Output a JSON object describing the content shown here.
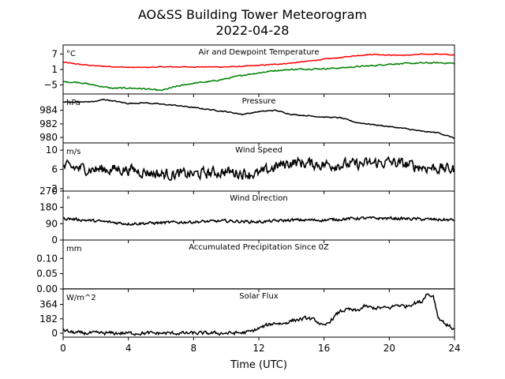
{
  "chart_data": {
    "title": "AO&SS Building Tower Meteorogram",
    "subtitle": "2022-04-28",
    "type": "line",
    "xlabel": "Time (UTC)",
    "xlim": [
      0,
      24
    ],
    "xticks": [
      0,
      4,
      8,
      12,
      16,
      20,
      24
    ],
    "panels": [
      {
        "name": "Air and Dewpoint Temperature",
        "unit": "°C",
        "ylim": [
          -8.5,
          10.5
        ],
        "yticks": [
          7,
          1,
          -5
        ],
        "ytick_labels": [
          "7",
          "1",
          "−5"
        ],
        "series": [
          {
            "color": "#ff0000",
            "x": [
              0,
              1,
              2,
              3,
              4,
              5,
              6,
              7,
              8,
              9,
              10,
              11,
              12,
              13,
              14,
              15,
              16,
              17,
              18,
              19,
              20,
              21,
              22,
              23,
              24
            ],
            "values": [
              3.8,
              3.0,
              2.4,
              2.1,
              1.8,
              1.8,
              2.0,
              2.0,
              2.0,
              2.0,
              2.0,
              2.2,
              2.6,
              3.0,
              3.5,
              4.2,
              5.0,
              5.6,
              6.4,
              6.9,
              6.6,
              6.5,
              6.9,
              7.0,
              6.6
            ]
          },
          {
            "color": "#008000",
            "x": [
              0,
              1,
              2,
              3,
              4,
              5,
              6,
              7,
              8,
              9,
              10,
              11,
              12,
              13,
              14,
              15,
              16,
              17,
              18,
              19,
              20,
              21,
              22,
              23,
              24
            ],
            "values": [
              -3.8,
              -4.0,
              -5.2,
              -6.3,
              -6.2,
              -6.5,
              -7.2,
              -5.5,
              -4.3,
              -3.7,
              -2.6,
              -1.2,
              -0.3,
              0.6,
              1.0,
              1.2,
              1.3,
              1.6,
              2.1,
              2.5,
              3.1,
              3.3,
              3.5,
              3.6,
              3.4
            ]
          }
        ],
        "noise": [
          0.25,
          0.4
        ]
      },
      {
        "name": "Pressure",
        "unit": "hPa",
        "ylim": [
          979.2,
          986.4
        ],
        "yticks": [
          984,
          982,
          980
        ],
        "ytick_labels": [
          "984",
          "982",
          "980"
        ],
        "series": [
          {
            "color": "#000000",
            "x": [
              0,
              1,
              2,
              2.5,
              3,
              4,
              5,
              6,
              7,
              8,
              9,
              10,
              11,
              12,
              13,
              14,
              15,
              16,
              17,
              18,
              19,
              20,
              21,
              22,
              23,
              24
            ],
            "values": [
              985.2,
              985.2,
              985.3,
              985.6,
              985.4,
              985.0,
              985.1,
              984.9,
              984.7,
              984.4,
              984.1,
              983.8,
              983.4,
              983.8,
              984.0,
              983.4,
              983.2,
              983.0,
              982.9,
              982.2,
              981.9,
              981.6,
              981.3,
              980.9,
              980.7,
              979.9
            ]
          }
        ],
        "noise": [
          0.12
        ]
      },
      {
        "name": "Wind Speed",
        "unit": "m/s",
        "ylim": [
          1.5,
          11.5
        ],
        "yticks": [
          10,
          6,
          2
        ],
        "ytick_labels": [
          "10",
          "6",
          "2"
        ],
        "series": [
          {
            "color": "#000000",
            "x": [
              0,
              2,
              4,
              6,
              8,
              10,
              12,
              13,
              14,
              16,
              18,
              20,
              22,
              24
            ],
            "values": [
              6.5,
              6.0,
              6.0,
              5.0,
              5.0,
              5.5,
              5.0,
              6.5,
              7.5,
              7.0,
              7.0,
              7.5,
              6.5,
              6.0
            ]
          }
        ],
        "noise": [
          1.8
        ]
      },
      {
        "name": "Wind Direction",
        "unit": "°",
        "ylim": [
          0,
          270
        ],
        "yticks": [
          270,
          180,
          90,
          0
        ],
        "ytick_labels": [
          "270",
          "180",
          "90",
          "0"
        ],
        "series": [
          {
            "color": "#000000",
            "x": [
              0,
              2,
              4,
              6,
              8,
              10,
              12,
              14,
              16,
              18,
              20,
              22,
              24
            ],
            "values": [
              120,
              105,
              90,
              95,
              100,
              105,
              100,
              110,
              110,
              120,
              120,
              115,
              110
            ]
          }
        ],
        "noise": [
          12
        ]
      },
      {
        "name": "Accumulated Precipitation Since 0Z",
        "unit": "mm",
        "ylim": [
          0,
          0.16
        ],
        "yticks": [
          0.1,
          0.05,
          0.0
        ],
        "ytick_labels": [
          "0.10",
          "0.05",
          "0.00"
        ],
        "series": [
          {
            "color": "#000000",
            "x": [
              0,
              24
            ],
            "values": [
              0,
              0
            ]
          }
        ],
        "noise": [
          0
        ]
      },
      {
        "name": "Solar Flux",
        "unit": "W/m^2",
        "ylim": [
          -50,
          560
        ],
        "yticks": [
          364,
          182,
          0
        ],
        "ytick_labels": [
          "364",
          "182",
          "0"
        ],
        "series": [
          {
            "color": "#000000",
            "x": [
              0,
              0.5,
              1,
              2,
              4,
              8,
              10,
              11,
              11.5,
              12,
              12.5,
              13,
              13.5,
              14,
              15,
              15.5,
              16,
              16.5,
              17,
              17.5,
              18,
              18.5,
              19,
              20,
              20.5,
              21,
              21.5,
              22,
              22.3,
              22.5,
              22.7,
              23,
              23.5,
              24
            ],
            "values": [
              40,
              12,
              2,
              0,
              0,
              0,
              0,
              5,
              20,
              60,
              100,
              130,
              120,
              160,
              190,
              160,
              80,
              180,
              280,
              300,
              280,
              340,
              320,
              320,
              360,
              340,
              380,
              400,
              510,
              470,
              480,
              200,
              110,
              50
            ]
          }
        ],
        "noise": [
          35
        ]
      }
    ]
  }
}
